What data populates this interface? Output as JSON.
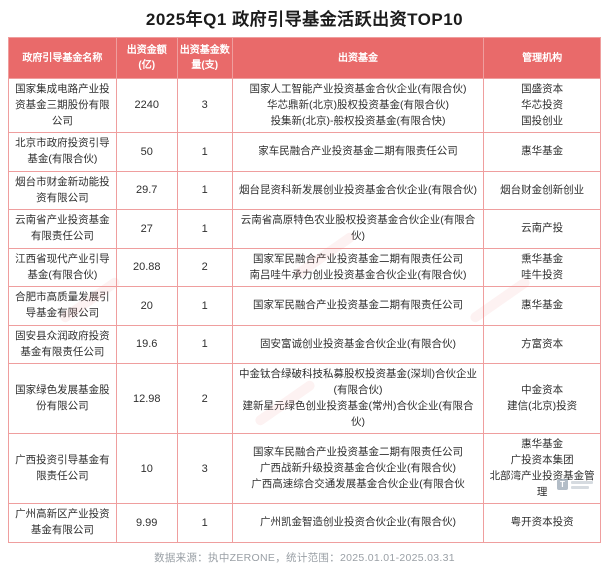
{
  "title": "2025年Q1 政府引导基金活跃出资TOP10",
  "chart_data": {
    "type": "table",
    "title": "2025年Q1 政府引导基金活跃出资TOP10",
    "columns": [
      "政府引导基金名称",
      "出资金额(亿)",
      "出资基金数量(支)",
      "出资基金",
      "管理机构"
    ],
    "rows": [
      {
        "name": "国家集成电路产业投资基金三期股份有限公司",
        "amount": "2240",
        "count": "3",
        "funds": [
          "国家人工智能产业投资基金合伙企业(有限合伙)",
          "华芯鼎新(北京)股权投资基金(有限合伙)",
          "投集新(北京)-般权投资基金(有限合快)"
        ],
        "managers": [
          "国盛资本",
          "华芯投资",
          "国投创业"
        ]
      },
      {
        "name": "北京市政府投资引导基金(有限合伙)",
        "amount": "50",
        "count": "1",
        "funds": [
          "家车民融合产业投资基金二期有限责任公司"
        ],
        "managers": [
          "惠华基金"
        ]
      },
      {
        "name": "烟台市财金新动能投资有限公司",
        "amount": "29.7",
        "count": "1",
        "funds": [
          "烟台昆资科新发展创业投资基金合伙企业(有限合伙)"
        ],
        "managers": [
          "烟台财金创新创业"
        ]
      },
      {
        "name": "云南省产业投资基金有限责任公司",
        "amount": "27",
        "count": "1",
        "funds": [
          "云南省高原特色农业股权投资基金合伙企业(有限合伙)"
        ],
        "managers": [
          "云南产投"
        ]
      },
      {
        "name": "江西省现代产业引导基金(有限合伙)",
        "amount": "20.88",
        "count": "2",
        "funds": [
          "国家军民融合产业投资基金二期有限责任公司",
          "南吕哇牛承力创业投资基金合伙企业(有限合伙)"
        ],
        "managers": [
          "熏华基金",
          "哇牛投资"
        ]
      },
      {
        "name": "合肥市高质量发展引导基金有限公司",
        "amount": "20",
        "count": "1",
        "funds": [
          "国家军民融合产业投资基金二期有限责任公司"
        ],
        "managers": [
          "惠华基金"
        ]
      },
      {
        "name": "固安县众润政府投资基金有限责任公司",
        "amount": "19.6",
        "count": "1",
        "funds": [
          "固安富诚创业投资基金合伙企业(有限合伙)"
        ],
        "managers": [
          "方富资本"
        ]
      },
      {
        "name": "国家绿色发展基金股份有限公司",
        "amount": "12.98",
        "count": "2",
        "funds": [
          "中金钛合绿破科技私募股权投资基金(深圳)合伙企业(有限合伙)",
          "建新星元绿色创业投资基金(常州)合伙企业(有限合伙)"
        ],
        "managers": [
          "中金资本",
          "建信(北京)投资"
        ]
      },
      {
        "name": "广西投资引导基金有限责任公司",
        "amount": "10",
        "count": "3",
        "funds": [
          "国家车民融合产业投资基金二期有限责任公司",
          "广西战新升级投资基金合伙企业(有限合伙)",
          "广西高速综合交通发展基金合伙企业(有限合伙"
        ],
        "managers": [
          "惠华基金",
          "广投资本集团",
          "北部湾产业投资基金管理"
        ]
      },
      {
        "name": "广州高新区产业投资基金有限公司",
        "amount": "9.99",
        "count": "1",
        "funds": [
          "广州凯金智造创业投资合伙企业(有限合伙)"
        ],
        "managers": [
          "粤开资本投资"
        ]
      }
    ]
  },
  "footer": "数据来源：执中ZERONE，统计范围：2025.01.01-2025.03.31",
  "watermark": {
    "icon_letter": "T"
  },
  "colors": {
    "header_bg": "#e96a6a",
    "border": "#ef9e9e",
    "header_text": "#ffffff",
    "body_text": "#2f2f2f",
    "footer_text": "#9aa0a6"
  }
}
